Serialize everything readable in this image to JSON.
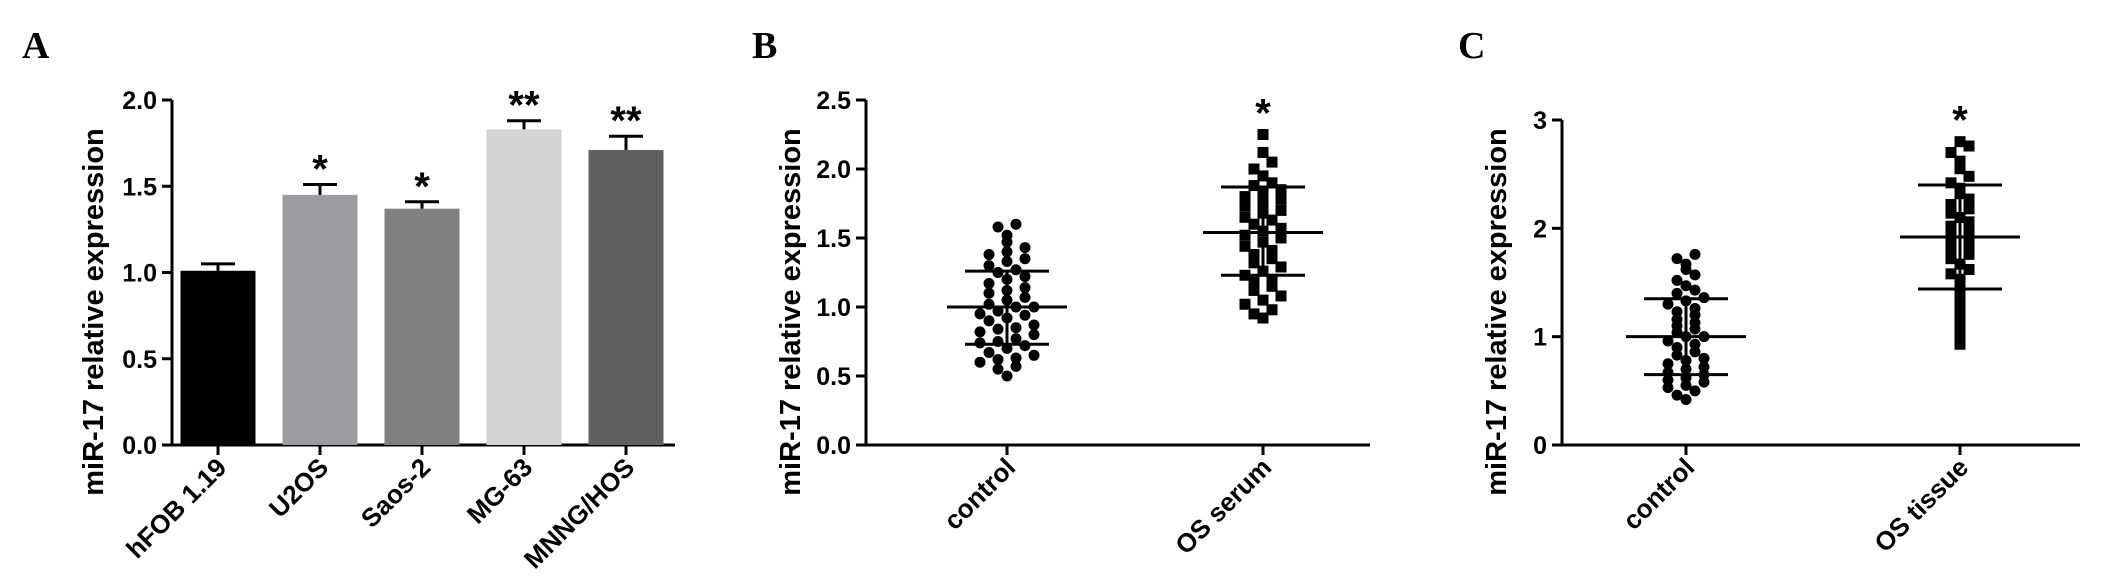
{
  "panels": [
    "A",
    "B",
    "C"
  ],
  "chart_data": [
    {
      "type": "bar",
      "ylabel": "miR-17 relative expression",
      "ylim": [
        0,
        2.0
      ],
      "yticks": [
        "0.0",
        "0.5",
        "1.0",
        "1.5",
        "2.0"
      ],
      "categories": [
        "hFOB 1.19",
        "U2OS",
        "Saos-2",
        "MG-63",
        "MNNG/HOS"
      ],
      "values": [
        1.01,
        1.45,
        1.37,
        1.83,
        1.71
      ],
      "errors": [
        0.04,
        0.06,
        0.04,
        0.05,
        0.08
      ],
      "significance": [
        "",
        "*",
        "*",
        "**",
        "**"
      ],
      "colors": [
        "#000000",
        "#9c9ca0",
        "#808080",
        "#d4d4d4",
        "#606060"
      ]
    },
    {
      "type": "scatter",
      "ylabel": "miR-17 relative expression",
      "ylim": [
        0,
        2.5
      ],
      "yticks": [
        "0.0",
        "0.5",
        "1.0",
        "1.5",
        "2.0",
        "2.5"
      ],
      "categories": [
        "control",
        "OS serum"
      ],
      "series": [
        {
          "marker": "circle",
          "mean": 1.0,
          "sd_low": 0.73,
          "sd_high": 1.26,
          "values": [
            0.5,
            0.55,
            0.57,
            0.6,
            0.62,
            0.63,
            0.65,
            0.67,
            0.7,
            0.72,
            0.74,
            0.75,
            0.77,
            0.8,
            0.82,
            0.84,
            0.85,
            0.87,
            0.9,
            0.92,
            0.94,
            0.95,
            0.97,
            1.0,
            1.0,
            1.02,
            1.05,
            1.07,
            1.1,
            1.12,
            1.14,
            1.17,
            1.2,
            1.22,
            1.25,
            1.27,
            1.3,
            1.33,
            1.35,
            1.38,
            1.4,
            1.43,
            1.47,
            1.52,
            1.58,
            1.6
          ]
        },
        {
          "marker": "square",
          "mean": 1.54,
          "sd_low": 1.23,
          "sd_high": 1.87,
          "values": [
            0.92,
            0.95,
            0.98,
            1.02,
            1.05,
            1.08,
            1.12,
            1.15,
            1.18,
            1.2,
            1.23,
            1.26,
            1.29,
            1.32,
            1.35,
            1.38,
            1.41,
            1.44,
            1.47,
            1.5,
            1.52,
            1.55,
            1.57,
            1.6,
            1.63,
            1.65,
            1.68,
            1.7,
            1.73,
            1.75,
            1.78,
            1.8,
            1.83,
            1.85,
            1.88,
            1.9,
            1.95,
            2.0,
            2.05,
            2.12,
            2.25
          ]
        }
      ],
      "significance": [
        "",
        "*"
      ]
    },
    {
      "type": "scatter",
      "ylabel": "miR-17 relative expression",
      "ylim": [
        0,
        3
      ],
      "yticks": [
        "0",
        "1",
        "2",
        "3"
      ],
      "categories": [
        "control",
        "OS tissue"
      ],
      "series": [
        {
          "marker": "circle",
          "mean": 1.0,
          "sd_low": 0.65,
          "sd_high": 1.35,
          "values": [
            0.42,
            0.46,
            0.5,
            0.53,
            0.55,
            0.58,
            0.6,
            0.62,
            0.65,
            0.67,
            0.7,
            0.72,
            0.75,
            0.78,
            0.8,
            0.83,
            0.86,
            0.9,
            0.93,
            0.96,
            1.0,
            1.0,
            1.04,
            1.07,
            1.1,
            1.13,
            1.16,
            1.2,
            1.23,
            1.26,
            1.3,
            1.33,
            1.36,
            1.4,
            1.43,
            1.47,
            1.52,
            1.57,
            1.62,
            1.67,
            1.72,
            1.76
          ]
        },
        {
          "marker": "square",
          "mean": 1.92,
          "sd_low": 1.44,
          "sd_high": 2.4,
          "values": [
            0.93,
            0.98,
            1.05,
            1.12,
            1.2,
            1.28,
            1.35,
            1.42,
            1.48,
            1.53,
            1.58,
            1.62,
            1.67,
            1.72,
            1.76,
            1.8,
            1.84,
            1.88,
            1.92,
            1.95,
            1.98,
            2.02,
            2.06,
            2.1,
            2.14,
            2.18,
            2.22,
            2.27,
            2.32,
            2.37,
            2.42,
            2.48,
            2.55,
            2.62,
            2.7,
            2.76,
            2.8
          ]
        }
      ],
      "significance": [
        "",
        "*"
      ]
    }
  ]
}
